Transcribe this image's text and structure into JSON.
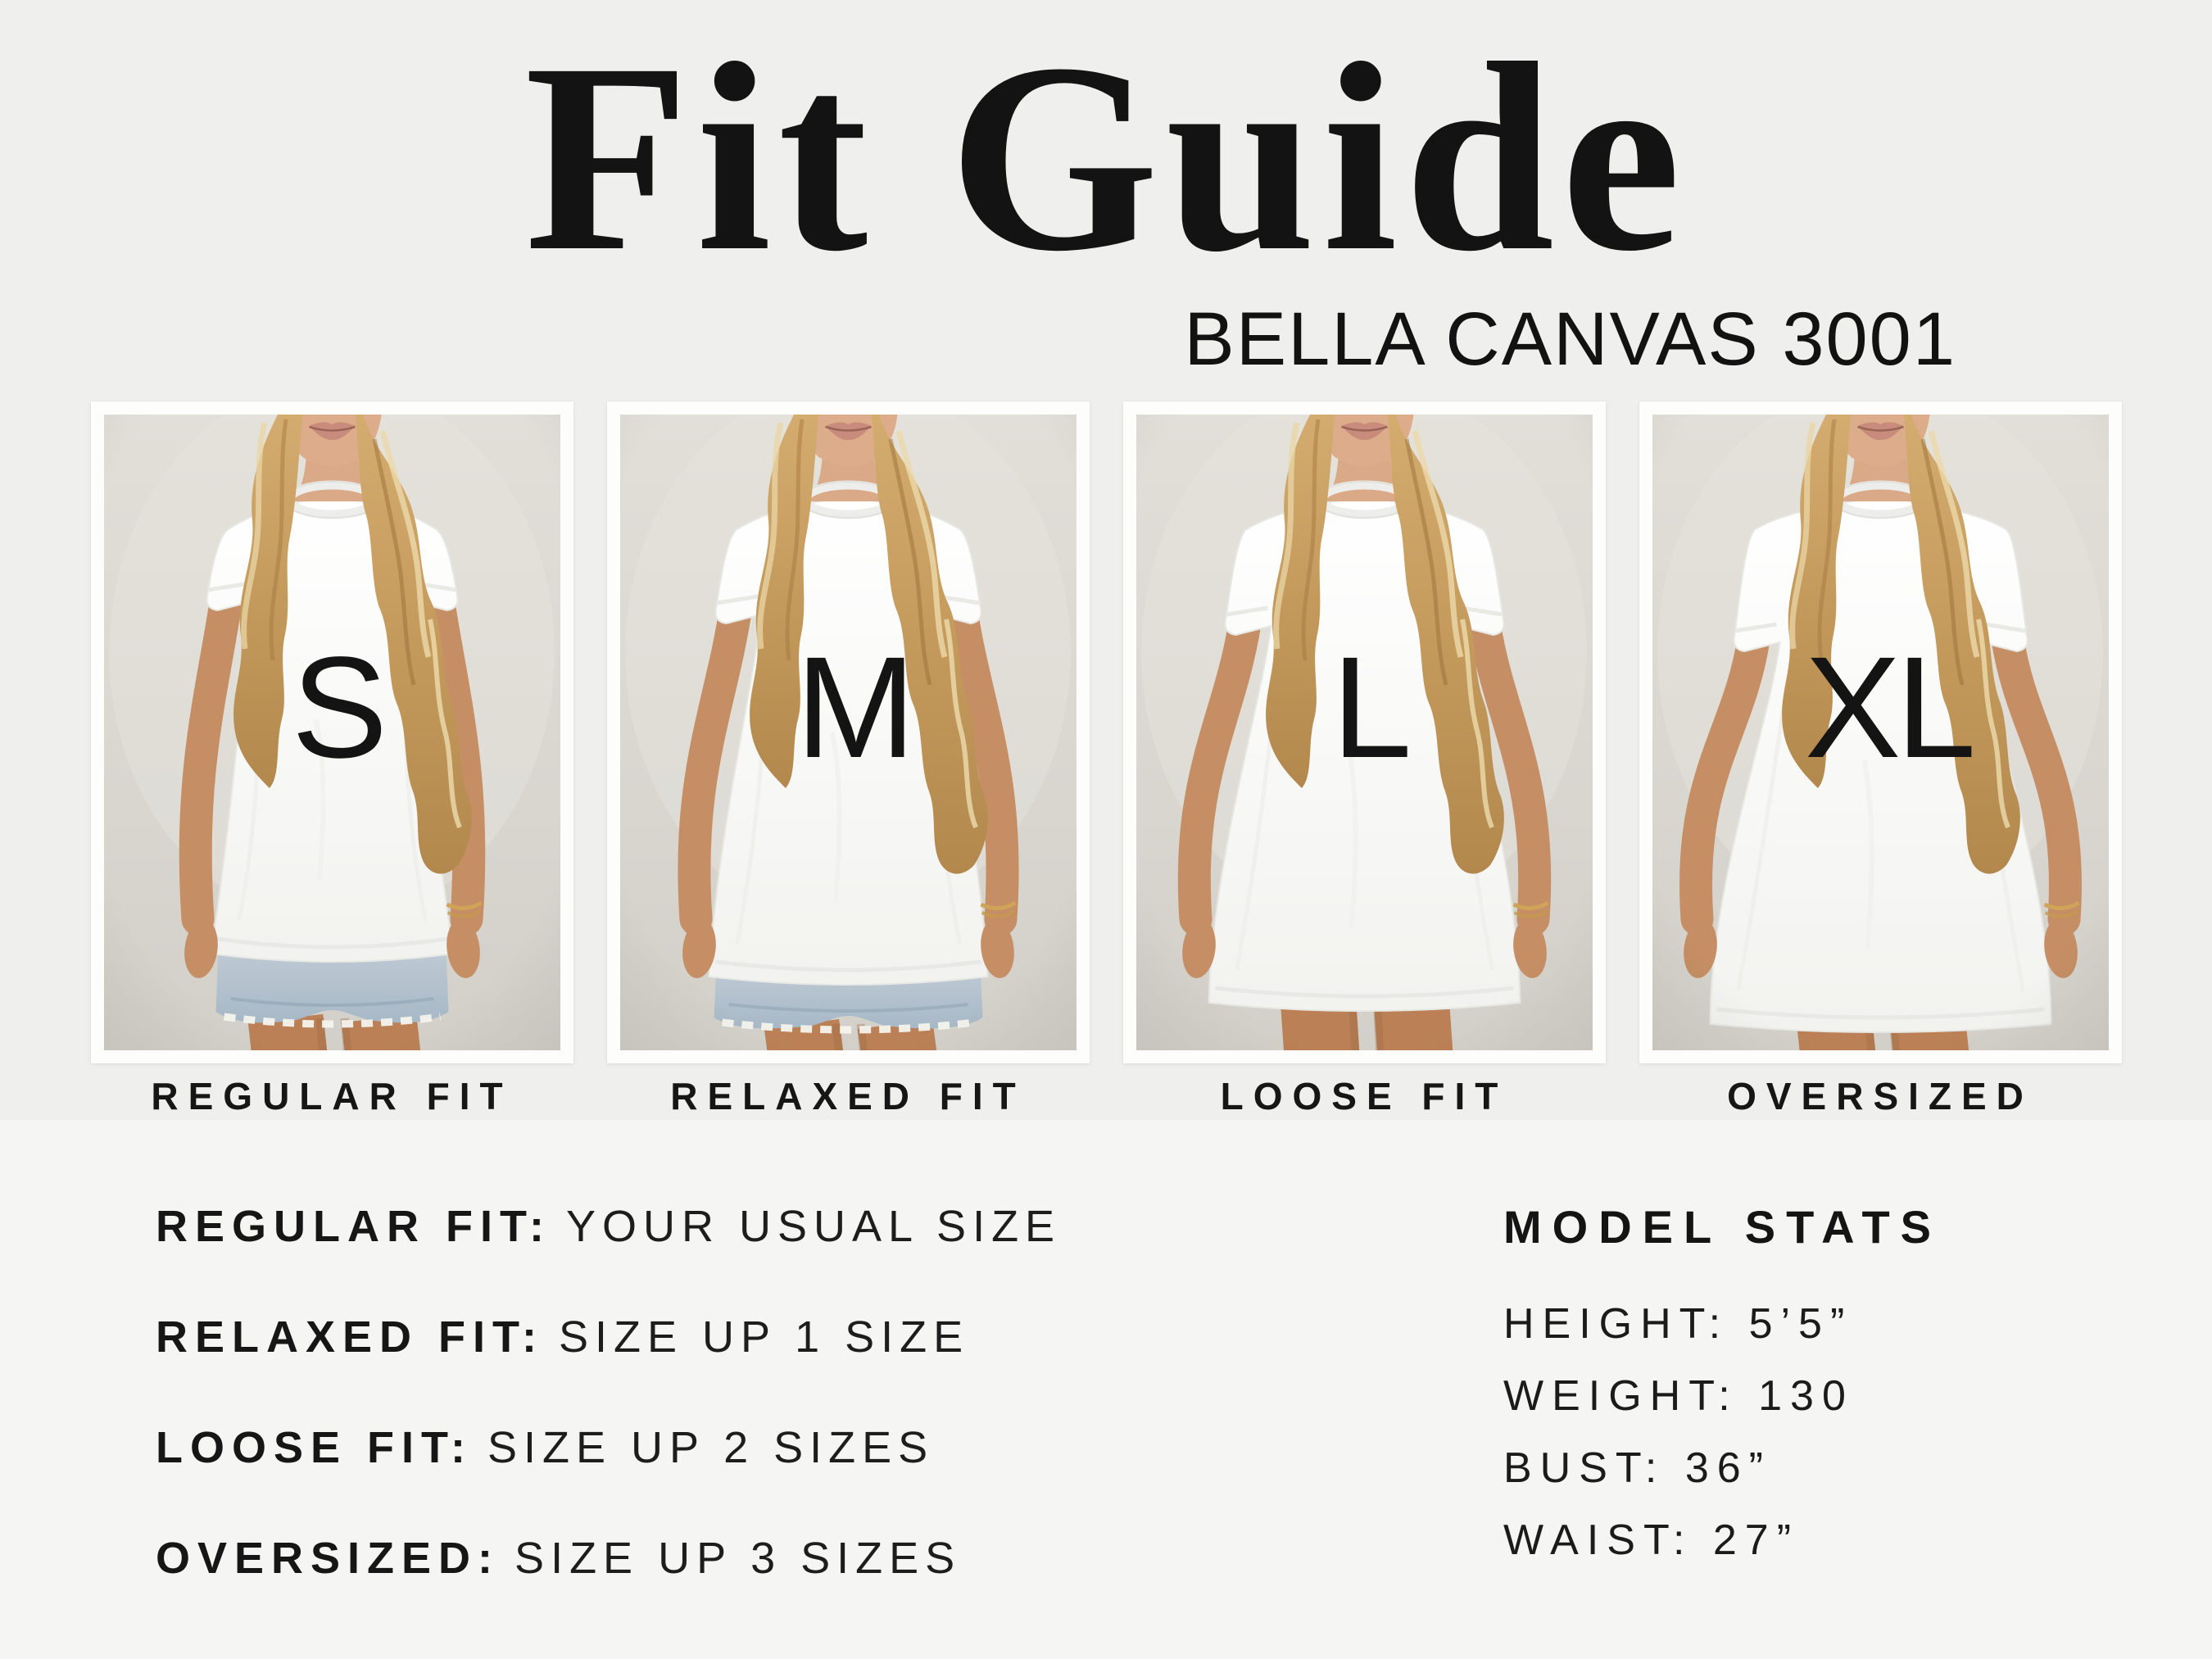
{
  "header": {
    "title": "Fit Guide",
    "subtitle": "BELLA CANVAS 3001"
  },
  "cards": [
    {
      "letter": "S",
      "fit_label": "REGULAR FIT"
    },
    {
      "letter": "M",
      "fit_label": "RELAXED FIT"
    },
    {
      "letter": "L",
      "fit_label": "LOOSE FIT"
    },
    {
      "letter": "XL",
      "fit_label": "OVERSIZED"
    }
  ],
  "fit_rules": [
    {
      "label": "REGULAR FIT:",
      "value": "YOUR USUAL SIZE"
    },
    {
      "label": "RELAXED FIT:",
      "value": "SIZE UP 1 SIZE"
    },
    {
      "label": "LOOSE FIT:",
      "value": "SIZE UP 2 SIZES"
    },
    {
      "label": "OVERSIZED:",
      "value": "SIZE UP 3 SIZES"
    }
  ],
  "model_stats": {
    "heading": "MODEL STATS",
    "stats": [
      {
        "text": "HEIGHT: 5’5”"
      },
      {
        "text": "WEIGHT: 130"
      },
      {
        "text": "BUST: 36”"
      },
      {
        "text": "WAIST: 27”"
      }
    ]
  },
  "colors": {
    "background_top": "#efefed",
    "background_bottom": "#f5f5f3",
    "card_frame": "#fdfdfc",
    "photo_backdrop": "#dbd9d2",
    "text": "#161616"
  }
}
